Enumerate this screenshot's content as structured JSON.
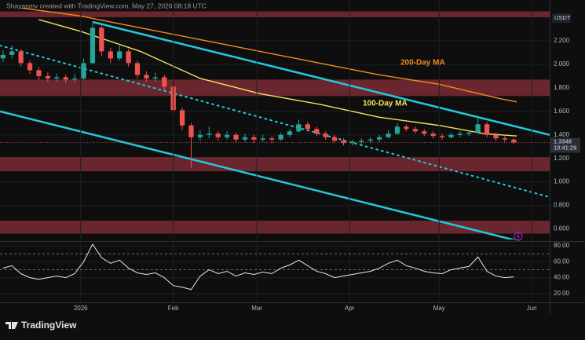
{
  "header": "Shayanmv created with TradingView.com, May 27, 2026 08:18 UTC",
  "logo": "TradingView",
  "chart_data": [
    {
      "type": "candlestick",
      "currency": "USDT",
      "x": [
        -26,
        -23,
        -20,
        -17,
        -14,
        -11,
        -8,
        -5,
        -2,
        1,
        4,
        7,
        10,
        13,
        16,
        19,
        22,
        25,
        28,
        31,
        34,
        37,
        40,
        43,
        46,
        49,
        52,
        55,
        58,
        61,
        64,
        67,
        70,
        73,
        76,
        79,
        82,
        85,
        88,
        91,
        94,
        97,
        100,
        103,
        106,
        109,
        112,
        115,
        118,
        121,
        124,
        127,
        130,
        133,
        136,
        139,
        142,
        145
      ],
      "open": [
        2.05,
        2.08,
        2.11,
        2.01,
        1.95,
        1.9,
        1.88,
        1.89,
        1.87,
        1.88,
        2.01,
        2.31,
        2.11,
        2.05,
        2.11,
        2.01,
        1.91,
        1.88,
        1.89,
        1.81,
        1.61,
        1.48,
        1.38,
        1.4,
        1.41,
        1.38,
        1.4,
        1.36,
        1.38,
        1.36,
        1.37,
        1.36,
        1.4,
        1.43,
        1.49,
        1.45,
        1.41,
        1.38,
        1.35,
        1.33,
        1.34,
        1.35,
        1.36,
        1.38,
        1.41,
        1.47,
        1.45,
        1.43,
        1.41,
        1.39,
        1.38,
        1.4,
        1.41,
        1.42,
        1.49,
        1.4,
        1.37,
        1.36
      ],
      "high": [
        2.12,
        2.16,
        2.13,
        2.03,
        1.98,
        1.93,
        1.92,
        1.91,
        1.92,
        2.05,
        2.36,
        2.33,
        2.14,
        2.16,
        2.13,
        2.03,
        1.94,
        1.93,
        1.91,
        1.83,
        1.63,
        1.5,
        1.44,
        1.47,
        1.43,
        1.43,
        1.42,
        1.41,
        1.4,
        1.4,
        1.39,
        1.42,
        1.45,
        1.53,
        1.51,
        1.47,
        1.43,
        1.4,
        1.37,
        1.36,
        1.37,
        1.38,
        1.4,
        1.44,
        1.5,
        1.49,
        1.47,
        1.45,
        1.43,
        1.41,
        1.42,
        1.43,
        1.44,
        1.56,
        1.51,
        1.42,
        1.39,
        1.37
      ],
      "low": [
        2.02,
        2.05,
        1.98,
        1.92,
        1.87,
        1.85,
        1.85,
        1.84,
        1.85,
        1.87,
        2.0,
        2.07,
        2.01,
        2.03,
        1.98,
        1.88,
        1.85,
        1.85,
        1.78,
        1.57,
        1.44,
        1.12,
        1.35,
        1.37,
        1.35,
        1.36,
        1.33,
        1.34,
        1.33,
        1.34,
        1.33,
        1.35,
        1.38,
        1.42,
        1.43,
        1.39,
        1.36,
        1.33,
        1.31,
        1.31,
        1.32,
        1.33,
        1.34,
        1.37,
        1.4,
        1.43,
        1.41,
        1.39,
        1.37,
        1.36,
        1.37,
        1.38,
        1.39,
        1.41,
        1.38,
        1.35,
        1.34,
        1.32
      ],
      "close": [
        2.08,
        2.11,
        2.01,
        1.95,
        1.9,
        1.88,
        1.89,
        1.87,
        1.88,
        2.01,
        2.31,
        2.11,
        2.05,
        2.11,
        2.01,
        1.91,
        1.88,
        1.89,
        1.81,
        1.61,
        1.48,
        1.38,
        1.4,
        1.41,
        1.38,
        1.4,
        1.36,
        1.38,
        1.36,
        1.37,
        1.36,
        1.4,
        1.43,
        1.49,
        1.45,
        1.41,
        1.38,
        1.35,
        1.33,
        1.34,
        1.35,
        1.36,
        1.38,
        1.41,
        1.47,
        1.45,
        1.43,
        1.41,
        1.39,
        1.38,
        1.4,
        1.41,
        1.42,
        1.49,
        1.4,
        1.37,
        1.36,
        1.3348
      ],
      "up_color": "#26a69a",
      "down_color": "#ef5350",
      "last_price": 1.3348,
      "countdown": "10:41:29",
      "xlim": [
        -27,
        157
      ],
      "xticks": [
        {
          "value": 0,
          "label": "2026"
        },
        {
          "value": 31,
          "label": "Feb"
        },
        {
          "value": 59,
          "label": "Mar"
        },
        {
          "value": 90,
          "label": "Apr"
        },
        {
          "value": 120,
          "label": "May"
        },
        {
          "value": 151,
          "label": "Jun"
        }
      ],
      "ylim": [
        0.51,
        2.48
      ],
      "yticks": [
        {
          "value": 2.2,
          "label": "2.200"
        },
        {
          "value": 2.0,
          "label": "2.000"
        },
        {
          "value": 1.8,
          "label": "1.800"
        },
        {
          "value": 1.6,
          "label": "1.600"
        },
        {
          "value": 1.4,
          "label": "1.400"
        },
        {
          "value": 1.2,
          "label": "1.200"
        },
        {
          "value": 1.0,
          "label": "1.000"
        },
        {
          "value": 0.8,
          "label": "0.800"
        },
        {
          "value": 0.6,
          "label": "0.600"
        }
      ],
      "grid": true,
      "zones": [
        {
          "from": 2.4,
          "to": 2.45
        },
        {
          "from": 1.73,
          "to": 1.87
        },
        {
          "from": 1.09,
          "to": 1.21
        },
        {
          "from": 0.56,
          "to": 0.67
        }
      ],
      "zone_color": "#8a2f3a",
      "trendlines": [
        {
          "x": [
            4,
            157
          ],
          "values": [
            2.36,
            1.4
          ],
          "color": "#26c6da",
          "dash": false
        },
        {
          "x": [
            -27,
            157
          ],
          "values": [
            1.6,
            0.43
          ],
          "color": "#26c6da",
          "dash": false
        },
        {
          "x": [
            -27,
            157
          ],
          "values": [
            2.16,
            0.87
          ],
          "color": "#26c6da",
          "dash": true
        }
      ],
      "series": [
        {
          "name": "200-Day MA",
          "color": "#f08c1c",
          "x": [
            -20,
            0,
            20,
            40,
            60,
            80,
            100,
            120,
            140,
            146
          ],
          "values": [
            2.48,
            2.41,
            2.31,
            2.21,
            2.11,
            2.01,
            1.91,
            1.83,
            1.71,
            1.68
          ]
        },
        {
          "name": "100-Day MA",
          "color": "#f2e35a",
          "x": [
            -14,
            0,
            20,
            40,
            60,
            80,
            100,
            120,
            135,
            146
          ],
          "values": [
            2.38,
            2.28,
            2.11,
            1.88,
            1.75,
            1.66,
            1.55,
            1.48,
            1.41,
            1.39
          ]
        }
      ]
    },
    {
      "type": "line",
      "x": [
        -26,
        -23,
        -20,
        -17,
        -14,
        -11,
        -8,
        -5,
        -2,
        1,
        4,
        7,
        10,
        13,
        16,
        19,
        22,
        25,
        28,
        31,
        34,
        37,
        40,
        43,
        46,
        49,
        52,
        55,
        58,
        61,
        64,
        67,
        70,
        73,
        76,
        79,
        82,
        85,
        88,
        91,
        94,
        97,
        100,
        103,
        106,
        109,
        112,
        115,
        118,
        121,
        124,
        127,
        130,
        133,
        136,
        139,
        142,
        145
      ],
      "series": [
        {
          "color": "#e6e6e6",
          "values": [
            52,
            55,
            45,
            40,
            38,
            40,
            42,
            40,
            45,
            60,
            82,
            65,
            58,
            62,
            52,
            46,
            44,
            46,
            40,
            30,
            28,
            25,
            42,
            50,
            45,
            48,
            42,
            46,
            44,
            47,
            45,
            52,
            56,
            62,
            55,
            48,
            45,
            40,
            42,
            44,
            46,
            48,
            52,
            58,
            62,
            55,
            52,
            48,
            46,
            45,
            50,
            52,
            54,
            66,
            48,
            42,
            40,
            41
          ]
        }
      ],
      "xlim": [
        -27,
        157
      ],
      "ylim": [
        9,
        83
      ],
      "yticks": [
        {
          "value": 80,
          "label": "80.00"
        },
        {
          "value": 60,
          "label": "60.00"
        },
        {
          "value": 40,
          "label": "40.00"
        },
        {
          "value": 20,
          "label": "20.00"
        }
      ],
      "levels": [
        70,
        50
      ]
    }
  ]
}
